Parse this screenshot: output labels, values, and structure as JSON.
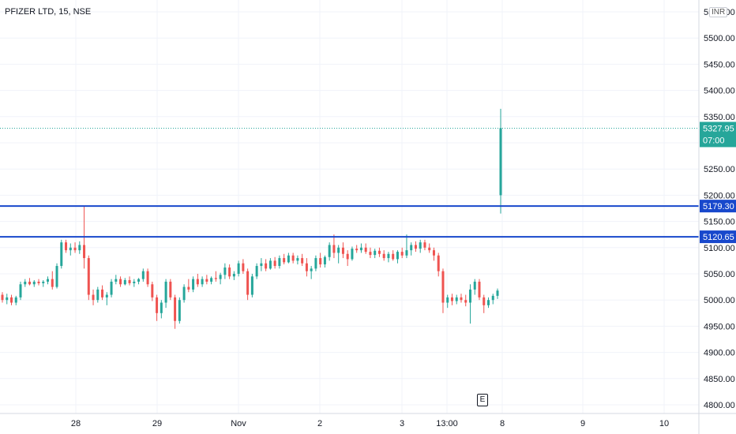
{
  "header": {
    "symbol": "PFIZER LTD, 15, NSE",
    "currency": "INR"
  },
  "event_marker": {
    "label": "E"
  },
  "colors": {
    "up": "#26a69a",
    "down": "#ef5350",
    "level_line": "#1848cc",
    "last_price": "#26a69a",
    "grid": "#f0f3fa"
  },
  "chart_data": {
    "type": "candlestick",
    "title": "PFIZER LTD, 15, NSE",
    "ylim": [
      4790,
      5560
    ],
    "y_ticks": [
      "4800.00",
      "4850.00",
      "4900.00",
      "4950.00",
      "5000.00",
      "5050.00",
      "5100.00",
      "5150.00",
      "5200.00",
      "5250.00",
      "5300.00",
      "5350.00",
      "5400.00",
      "5450.00",
      "5500.00",
      "5550.00"
    ],
    "y_tick_values": [
      4800,
      4850,
      4900,
      4950,
      5000,
      5050,
      5100,
      5150,
      5200,
      5250,
      5300,
      5350,
      5400,
      5450,
      5500,
      5550
    ],
    "x_ticks": [
      "28",
      "29",
      "Nov",
      "2",
      "3",
      "13:00",
      "8",
      "9",
      "10"
    ],
    "horizontal_levels": [
      {
        "value": 5179.3,
        "label": "5179.30"
      },
      {
        "value": 5120.65,
        "label": "5120.65"
      }
    ],
    "last_price": {
      "value": 5327.95,
      "label": "5327.95",
      "countdown": "07:00"
    },
    "candles_ohlc": [
      [
        5010,
        5015,
        4995,
        5000
      ],
      [
        5000,
        5012,
        4992,
        5005
      ],
      [
        5005,
        5010,
        4990,
        4995
      ],
      [
        4995,
        5008,
        4990,
        5005
      ],
      [
        5005,
        5035,
        5000,
        5030
      ],
      [
        5030,
        5040,
        5025,
        5035
      ],
      [
        5035,
        5042,
        5028,
        5030
      ],
      [
        5030,
        5038,
        5025,
        5035
      ],
      [
        5035,
        5040,
        5028,
        5032
      ],
      [
        5032,
        5038,
        5025,
        5035
      ],
      [
        5035,
        5045,
        5030,
        5040
      ],
      [
        5040,
        5055,
        5020,
        5025
      ],
      [
        5025,
        5070,
        5022,
        5065
      ],
      [
        5065,
        5115,
        5060,
        5110
      ],
      [
        5110,
        5115,
        5090,
        5095
      ],
      [
        5095,
        5108,
        5085,
        5100
      ],
      [
        5100,
        5110,
        5090,
        5095
      ],
      [
        5095,
        5112,
        5088,
        5105
      ],
      [
        5105,
        5180,
        5060,
        5080
      ],
      [
        5080,
        5085,
        5000,
        5010
      ],
      [
        5010,
        5020,
        4990,
        5000
      ],
      [
        5000,
        5025,
        4995,
        5020
      ],
      [
        5020,
        5028,
        5000,
        5005
      ],
      [
        5005,
        5015,
        4990,
        5010
      ],
      [
        5010,
        5040,
        5005,
        5035
      ],
      [
        5035,
        5048,
        5030,
        5040
      ],
      [
        5040,
        5045,
        5025,
        5030
      ],
      [
        5030,
        5042,
        5028,
        5038
      ],
      [
        5038,
        5045,
        5028,
        5032
      ],
      [
        5032,
        5040,
        5025,
        5035
      ],
      [
        5035,
        5042,
        5030,
        5040
      ],
      [
        5040,
        5060,
        5035,
        5055
      ],
      [
        5055,
        5060,
        5025,
        5030
      ],
      [
        5030,
        5035,
        4998,
        5005
      ],
      [
        5005,
        5010,
        4960,
        4975
      ],
      [
        4975,
        5000,
        4965,
        4995
      ],
      [
        4995,
        5040,
        4985,
        5035
      ],
      [
        5035,
        5040,
        5000,
        5005
      ],
      [
        5005,
        5010,
        4945,
        4960
      ],
      [
        4960,
        5005,
        4955,
        5000
      ],
      [
        5000,
        5030,
        4995,
        5025
      ],
      [
        5025,
        5040,
        5015,
        5020
      ],
      [
        5020,
        5045,
        5015,
        5040
      ],
      [
        5040,
        5050,
        5025,
        5030
      ],
      [
        5030,
        5045,
        5025,
        5040
      ],
      [
        5040,
        5048,
        5030,
        5035
      ],
      [
        5035,
        5045,
        5030,
        5042
      ],
      [
        5042,
        5055,
        5035,
        5040
      ],
      [
        5040,
        5052,
        5030,
        5048
      ],
      [
        5048,
        5070,
        5040,
        5062
      ],
      [
        5062,
        5068,
        5040,
        5045
      ],
      [
        5045,
        5055,
        5038,
        5050
      ],
      [
        5050,
        5075,
        5045,
        5070
      ],
      [
        5070,
        5078,
        5050,
        5055
      ],
      [
        5055,
        5060,
        5000,
        5010
      ],
      [
        5010,
        5050,
        5005,
        5045
      ],
      [
        5045,
        5070,
        5040,
        5065
      ],
      [
        5065,
        5080,
        5055,
        5070
      ],
      [
        5070,
        5078,
        5055,
        5060
      ],
      [
        5060,
        5080,
        5058,
        5075
      ],
      [
        5075,
        5082,
        5060,
        5065
      ],
      [
        5065,
        5085,
        5060,
        5080
      ],
      [
        5080,
        5088,
        5068,
        5072
      ],
      [
        5072,
        5090,
        5070,
        5085
      ],
      [
        5085,
        5090,
        5070,
        5075
      ],
      [
        5075,
        5085,
        5068,
        5080
      ],
      [
        5080,
        5088,
        5065,
        5070
      ],
      [
        5070,
        5080,
        5045,
        5055
      ],
      [
        5055,
        5065,
        5040,
        5060
      ],
      [
        5060,
        5085,
        5055,
        5080
      ],
      [
        5080,
        5090,
        5062,
        5068
      ],
      [
        5068,
        5085,
        5062,
        5082
      ],
      [
        5082,
        5110,
        5075,
        5105
      ],
      [
        5105,
        5125,
        5080,
        5090
      ],
      [
        5090,
        5105,
        5070,
        5100
      ],
      [
        5100,
        5110,
        5080,
        5088
      ],
      [
        5088,
        5095,
        5065,
        5078
      ],
      [
        5078,
        5102,
        5075,
        5098
      ],
      [
        5098,
        5105,
        5090,
        5095
      ],
      [
        5095,
        5108,
        5090,
        5100
      ],
      [
        5100,
        5108,
        5088,
        5092
      ],
      [
        5092,
        5100,
        5080,
        5086
      ],
      [
        5086,
        5098,
        5080,
        5094
      ],
      [
        5094,
        5100,
        5082,
        5088
      ],
      [
        5088,
        5095,
        5075,
        5080
      ],
      [
        5080,
        5092,
        5072,
        5088
      ],
      [
        5088,
        5095,
        5075,
        5078
      ],
      [
        5078,
        5095,
        5070,
        5092
      ],
      [
        5092,
        5100,
        5080,
        5085
      ],
      [
        5085,
        5125,
        5080,
        5095
      ],
      [
        5095,
        5110,
        5085,
        5105
      ],
      [
        5105,
        5112,
        5092,
        5098
      ],
      [
        5098,
        5115,
        5090,
        5110
      ],
      [
        5110,
        5115,
        5095,
        5100
      ],
      [
        5100,
        5108,
        5090,
        5095
      ],
      [
        5095,
        5100,
        5075,
        5085
      ],
      [
        5085,
        5090,
        5045,
        5055
      ],
      [
        5055,
        5060,
        4975,
        4995
      ],
      [
        4995,
        5010,
        4985,
        5005
      ],
      [
        5005,
        5012,
        4990,
        4998
      ],
      [
        4998,
        5010,
        4992,
        5005
      ],
      [
        5005,
        5012,
        4995,
        5000
      ],
      [
        5000,
        5010,
        4988,
        4995
      ],
      [
        4995,
        5030,
        4955,
        5020
      ],
      [
        5020,
        5040,
        5010,
        5035
      ],
      [
        5035,
        5040,
        5000,
        5005
      ],
      [
        5005,
        5010,
        4975,
        4990
      ],
      [
        4990,
        5005,
        4985,
        5000
      ],
      [
        5000,
        5012,
        4992,
        5008
      ],
      [
        5008,
        5022,
        5002,
        5018
      ],
      [
        5200,
        5365,
        5165,
        5328
      ]
    ]
  }
}
